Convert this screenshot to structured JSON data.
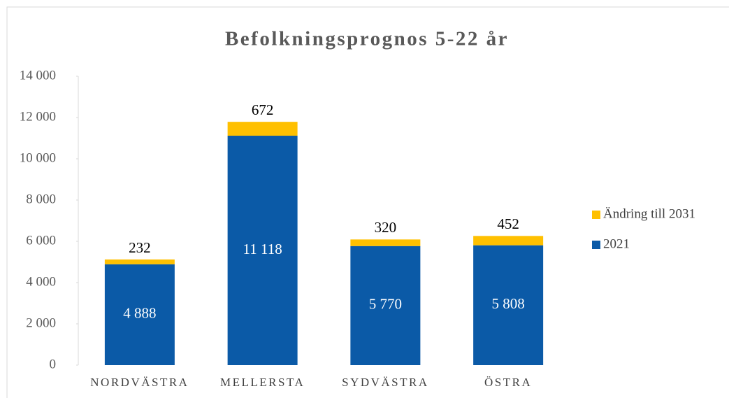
{
  "chart_data": {
    "type": "stacked_bar",
    "title": "Befolkningsprognos 5-22 år",
    "categories": [
      "NORDVÄSTRA",
      "MELLERSTA",
      "SYDVÄSTRA",
      "ÖSTRA"
    ],
    "series": [
      {
        "name": "2021",
        "color": "#0b5aa7",
        "values": [
          4888,
          11118,
          5770,
          5808
        ],
        "value_labels": [
          "4 888",
          "11 118",
          "5 770",
          "5 808"
        ]
      },
      {
        "name": "Ändring till 2031",
        "color": "#ffc000",
        "values": [
          232,
          672,
          320,
          452
        ]
      }
    ],
    "ylim": [
      0,
      14000
    ],
    "yticks": [
      0,
      {
        "value": 2000,
        "label": "2 000"
      },
      {
        "value": 4000,
        "label": "4 000"
      },
      {
        "value": 6000,
        "label": "6 000"
      },
      {
        "value": 8000,
        "label": "8 000"
      },
      {
        "value": 10000,
        "label": "10 000"
      },
      {
        "value": 12000,
        "label": "12 000"
      },
      {
        "value": 14000,
        "label": "14 000"
      }
    ],
    "legend": "right"
  }
}
